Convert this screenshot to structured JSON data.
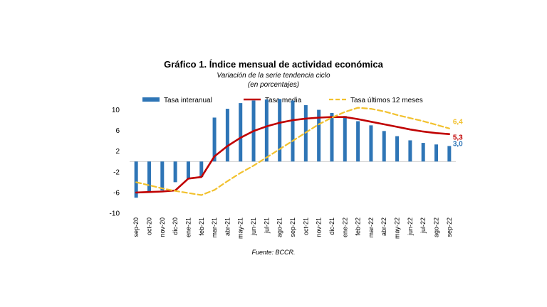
{
  "chart_data": {
    "type": "bar",
    "title": "Gráfico 1. Índice mensual de actividad económica",
    "subtitle": "Variación de la serie tendencia ciclo",
    "subtitle2": "(en porcentajes)",
    "source": "Fuente: BCCR.",
    "categories": [
      "sep-20",
      "oct-20",
      "nov-20",
      "dic-20",
      "ene-21",
      "feb-21",
      "mar-21",
      "abr-21",
      "may-21",
      "jun-21",
      "jul-21",
      "ago-21",
      "sep-21",
      "oct-21",
      "nov-21",
      "dic-21",
      "ene-22",
      "feb-22",
      "mar-22",
      "abr-22",
      "may-22",
      "jun-22",
      "jul-22",
      "ago-22",
      "sep-22"
    ],
    "ylim": [
      -10,
      12
    ],
    "yticks": [
      -10,
      -6,
      -2,
      2,
      6,
      10
    ],
    "grid": false,
    "legend_position": "top",
    "series": [
      {
        "name": "Tasa interanual",
        "kind": "bar",
        "color": "#2E75B6",
        "values": [
          -7.0,
          -5.8,
          -5.6,
          -4.0,
          -3.4,
          -3.0,
          8.5,
          10.2,
          11.3,
          11.8,
          12.0,
          12.1,
          11.8,
          10.9,
          10.0,
          9.4,
          8.8,
          7.8,
          7.0,
          5.9,
          4.9,
          4.1,
          3.6,
          3.3,
          3.0
        ]
      },
      {
        "name": "Tasa media",
        "kind": "line",
        "color": "#C00000",
        "values": [
          -6.0,
          -5.9,
          -5.8,
          -5.6,
          -3.3,
          -3.0,
          1.0,
          3.0,
          4.6,
          5.9,
          6.8,
          7.5,
          8.0,
          8.3,
          8.5,
          8.6,
          8.6,
          8.2,
          7.7,
          7.2,
          6.7,
          6.2,
          5.8,
          5.5,
          5.3
        ]
      },
      {
        "name": "Tasa últimos 12 meses",
        "kind": "dashed-line",
        "color": "#F2C12E",
        "values": [
          -4.0,
          -4.6,
          -5.2,
          -5.7,
          -6.1,
          -6.5,
          -5.5,
          -3.8,
          -2.2,
          -0.8,
          0.8,
          2.4,
          4.0,
          5.6,
          7.2,
          8.5,
          9.6,
          10.4,
          10.2,
          9.7,
          9.0,
          8.4,
          7.8,
          7.1,
          6.4
        ]
      }
    ],
    "end_labels": [
      {
        "series": "Tasa últimos 12 meses",
        "text": "6,4",
        "color": "#F2C12E"
      },
      {
        "series": "Tasa media",
        "text": "5,3",
        "color": "#C00000"
      },
      {
        "series": "Tasa interanual",
        "text": "3,0",
        "color": "#2E75B6"
      }
    ]
  }
}
